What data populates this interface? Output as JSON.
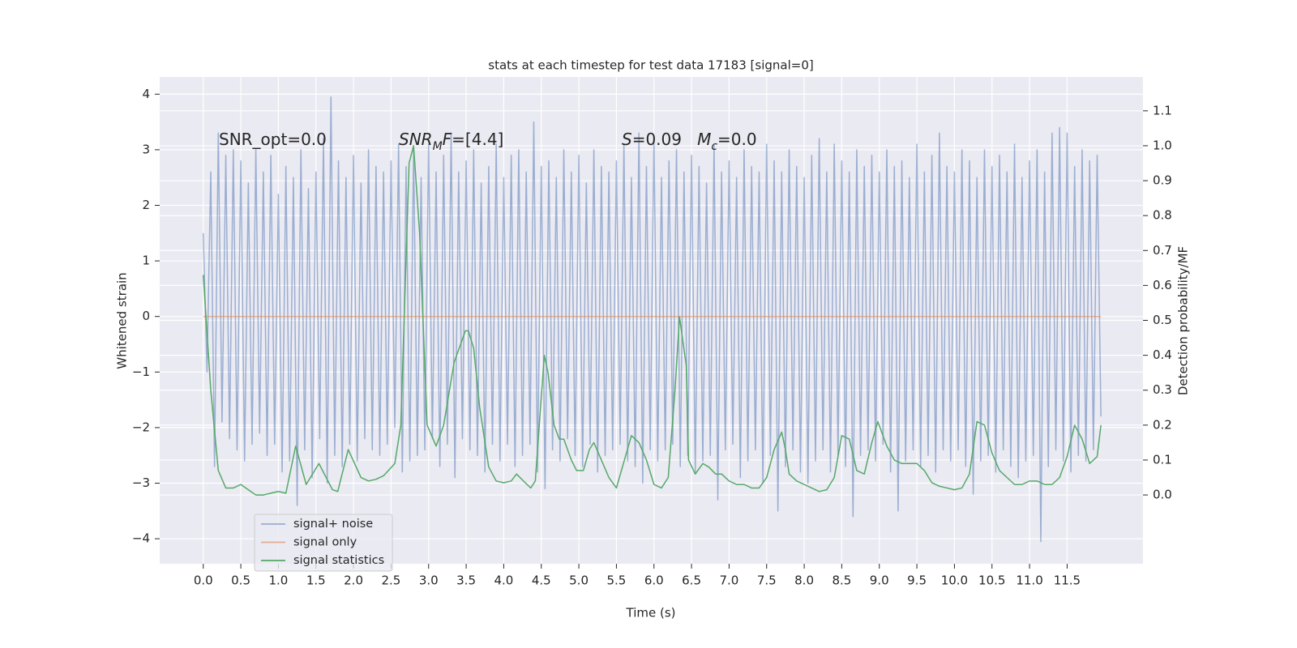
{
  "chart_data": {
    "type": "line",
    "title": "stats at each timestep for test data 17183 [signal=0]",
    "x_label": "Time (s)",
    "y_label": "Whitened strain",
    "y2_label": "Detection probability/MF",
    "xlim": [
      -0.58,
      12.51
    ],
    "ylim": [
      -4.45,
      4.31
    ],
    "y2lim": [
      -0.197,
      1.197
    ],
    "xticks": [
      {
        "value": 0,
        "label": "0.0"
      },
      0.5,
      {
        "value": 1,
        "label": "1.0"
      },
      1.5,
      {
        "value": 2,
        "label": "2.0"
      },
      2.5,
      {
        "value": 3,
        "label": "3.0"
      },
      3.5,
      {
        "value": 4,
        "label": "4.0"
      },
      4.5,
      {
        "value": 5,
        "label": "5.0"
      },
      5.5,
      {
        "value": 6,
        "label": "6.0"
      },
      6.5,
      {
        "value": 7,
        "label": "7.0"
      },
      7.5,
      {
        "value": 8,
        "label": "8.0"
      },
      8.5,
      {
        "value": 9,
        "label": "9.0"
      },
      9.5,
      {
        "value": 10,
        "label": "10.0"
      },
      10.5,
      {
        "value": 11,
        "label": "11.0"
      },
      11.5
    ],
    "yticks": [
      {
        "value": -4,
        "label": "−4"
      },
      {
        "value": -3,
        "label": "−3"
      },
      {
        "value": -2,
        "label": "−2"
      },
      {
        "value": -1,
        "label": "−1"
      },
      0,
      1,
      2,
      3,
      4
    ],
    "y2ticks": [
      {
        "value": 0,
        "label": "0.0"
      },
      0.1,
      0.2,
      0.3,
      0.4,
      0.5,
      0.6,
      0.7,
      0.8,
      0.9,
      {
        "value": 1,
        "label": "1.0"
      },
      1.1
    ],
    "grid": true,
    "legend": "lower left",
    "annotations": [
      [
        {
          "text": "SNR_opt=0.0"
        }
      ],
      [
        {
          "text": "SNR",
          "style": "italic"
        },
        {
          "text": "M",
          "style": "italic-sub"
        },
        {
          "text": "F",
          "style": "italic"
        },
        {
          "text": "=[4.4]"
        }
      ],
      [
        {
          "text": "S",
          "style": "italic"
        },
        {
          "text": "=0.09   "
        },
        {
          "text": "M",
          "style": "italic"
        },
        {
          "text": "c",
          "style": "italic-sub"
        },
        {
          "text": "=0.0"
        }
      ]
    ],
    "series": [
      {
        "name": "signal+ noise",
        "color": "#4c72b0",
        "opacity": 0.5,
        "x": [
          0,
          0.05,
          0.1,
          0.15,
          0.2,
          0.25,
          0.3,
          0.35,
          0.4,
          0.45,
          0.5,
          0.55,
          0.6,
          0.65,
          0.7,
          0.75,
          0.8,
          0.85,
          0.9,
          0.95,
          1,
          1.05,
          1.1,
          1.15,
          1.2,
          1.25,
          1.3,
          1.35,
          1.4,
          1.45,
          1.5,
          1.55,
          1.6,
          1.65,
          1.7,
          1.75,
          1.8,
          1.85,
          1.9,
          1.95,
          2,
          2.05,
          2.1,
          2.15,
          2.2,
          2.25,
          2.3,
          2.35,
          2.4,
          2.45,
          2.5,
          2.55,
          2.6,
          2.65,
          2.7,
          2.75,
          2.8,
          2.85,
          2.9,
          2.95,
          3,
          3.05,
          3.1,
          3.15,
          3.2,
          3.25,
          3.3,
          3.35,
          3.4,
          3.45,
          3.5,
          3.55,
          3.6,
          3.65,
          3.7,
          3.75,
          3.8,
          3.85,
          3.9,
          3.95,
          4,
          4.05,
          4.1,
          4.15,
          4.2,
          4.25,
          4.3,
          4.35,
          4.4,
          4.45,
          4.5,
          4.55,
          4.6,
          4.65,
          4.7,
          4.75,
          4.8,
          4.85,
          4.9,
          4.95,
          5,
          5.05,
          5.1,
          5.15,
          5.2,
          5.25,
          5.3,
          5.35,
          5.4,
          5.45,
          5.5,
          5.55,
          5.6,
          5.65,
          5.7,
          5.75,
          5.8,
          5.85,
          5.9,
          5.95,
          6,
          6.05,
          6.1,
          6.15,
          6.2,
          6.25,
          6.3,
          6.35,
          6.4,
          6.45,
          6.5,
          6.55,
          6.6,
          6.65,
          6.7,
          6.75,
          6.8,
          6.85,
          6.9,
          6.95,
          7,
          7.05,
          7.1,
          7.15,
          7.2,
          7.25,
          7.3,
          7.35,
          7.4,
          7.45,
          7.5,
          7.55,
          7.6,
          7.65,
          7.7,
          7.75,
          7.8,
          7.85,
          7.9,
          7.95,
          8,
          8.05,
          8.1,
          8.15,
          8.2,
          8.25,
          8.3,
          8.35,
          8.4,
          8.45,
          8.5,
          8.55,
          8.6,
          8.65,
          8.7,
          8.75,
          8.8,
          8.85,
          8.9,
          8.95,
          9,
          9.05,
          9.1,
          9.15,
          9.2,
          9.25,
          9.3,
          9.35,
          9.4,
          9.45,
          9.5,
          9.55,
          9.6,
          9.65,
          9.7,
          9.75,
          9.8,
          9.85,
          9.9,
          9.95,
          10,
          10.05,
          10.1,
          10.15,
          10.2,
          10.25,
          10.3,
          10.35,
          10.4,
          10.45,
          10.5,
          10.55,
          10.6,
          10.65,
          10.7,
          10.75,
          10.8,
          10.85,
          10.9,
          10.95,
          11,
          11.05,
          11.1,
          11.15,
          11.2,
          11.25,
          11.3,
          11.35,
          11.4,
          11.45,
          11.5,
          11.55,
          11.6,
          11.65,
          11.7,
          11.75,
          11.8,
          11.85,
          11.9,
          11.95
        ],
        "values": [
          1.5,
          -1.0,
          2.6,
          -2.7,
          3.3,
          -1.9,
          2.9,
          -2.2,
          3.0,
          -2.4,
          2.8,
          -2.6,
          2.4,
          -2.3,
          3.0,
          -2.1,
          2.6,
          -2.5,
          2.9,
          -2.3,
          2.2,
          -2.8,
          2.7,
          -2.6,
          2.5,
          -3.4,
          3.0,
          -2.4,
          2.3,
          -2.9,
          2.6,
          -2.2,
          3.2,
          -3.0,
          3.95,
          -2.5,
          2.8,
          -2.7,
          2.5,
          -2.3,
          2.9,
          -2.6,
          2.4,
          -2.2,
          3.0,
          -2.4,
          2.7,
          -2.5,
          2.6,
          -2.3,
          2.8,
          -2.0,
          3.1,
          -2.8,
          2.7,
          -2.6,
          3.0,
          -2.5,
          2.5,
          -2.4,
          3.1,
          -2.2,
          2.6,
          -2.7,
          2.9,
          -2.3,
          3.3,
          -2.9,
          2.6,
          -2.2,
          2.8,
          -2.4,
          3.0,
          -2.5,
          2.4,
          -2.8,
          2.7,
          -2.3,
          3.1,
          -2.6,
          2.5,
          -2.3,
          2.9,
          -2.7,
          3.0,
          -2.5,
          2.6,
          -2.3,
          3.5,
          -2.8,
          2.7,
          -3.1,
          2.8,
          -2.4,
          2.5,
          -2.6,
          3.0,
          -2.2,
          2.6,
          -2.5,
          2.9,
          -2.7,
          2.4,
          -2.3,
          3.0,
          -2.8,
          2.7,
          -2.5,
          2.6,
          -2.4,
          2.8,
          -2.3,
          3.1,
          -2.6,
          2.5,
          -2.7,
          3.3,
          -3.0,
          2.7,
          -2.4,
          3.2,
          -2.6,
          2.5,
          -2.4,
          2.8,
          -2.3,
          3.0,
          -2.7,
          2.6,
          -2.5,
          2.9,
          -2.8,
          2.7,
          -2.6,
          2.4,
          -2.5,
          3.1,
          -3.3,
          2.6,
          -2.4,
          2.8,
          -2.3,
          2.5,
          -2.9,
          3.0,
          -2.6,
          2.7,
          -2.4,
          2.6,
          -3.0,
          3.1,
          -2.5,
          2.8,
          -3.5,
          2.6,
          -2.7,
          3.0,
          -2.4,
          2.7,
          -2.8,
          2.5,
          -3.0,
          2.9,
          -2.6,
          3.2,
          -2.4,
          2.6,
          -2.8,
          3.1,
          -2.5,
          2.8,
          -2.7,
          2.6,
          -3.6,
          3.0,
          -2.5,
          2.7,
          -2.4,
          2.9,
          -2.6,
          2.6,
          -2.3,
          3.0,
          -2.8,
          2.7,
          -3.5,
          2.8,
          -2.6,
          2.5,
          -2.4,
          3.1,
          -2.7,
          2.6,
          -2.5,
          2.9,
          -2.8,
          3.3,
          -2.4,
          2.7,
          -2.6,
          2.6,
          -2.4,
          3.0,
          -2.7,
          2.8,
          -3.2,
          2.5,
          -2.6,
          3.0,
          -2.5,
          2.7,
          -2.8,
          2.9,
          -2.4,
          2.6,
          -2.7,
          3.1,
          -2.9,
          2.5,
          -2.6,
          2.8,
          -2.5,
          3.0,
          -4.05,
          2.6,
          -2.7,
          3.3,
          -2.4,
          3.4,
          -2.6,
          3.3,
          -2.8,
          2.7,
          -2.5,
          3.0,
          -2.6,
          2.8,
          -2.4,
          2.9,
          -1.8
        ]
      },
      {
        "name": "signal only",
        "color": "#dd8452",
        "opacity": 0.6,
        "x": [
          0,
          11.95
        ],
        "values": [
          0,
          0
        ]
      },
      {
        "name": "signal statistics",
        "color": "#55a868",
        "opacity": 1,
        "axis": "y2",
        "x": [
          0,
          0.1,
          0.2,
          0.3,
          0.4,
          0.5,
          0.6,
          0.7,
          0.8,
          0.9,
          1.0,
          1.1,
          1.23,
          1.37,
          1.54,
          1.72,
          1.79,
          1.93,
          2.1,
          2.2,
          2.3,
          2.4,
          2.55,
          2.63,
          2.74,
          2.8,
          2.88,
          2.98,
          3.1,
          3.2,
          3.34,
          3.49,
          3.53,
          3.6,
          3.68,
          3.8,
          3.9,
          4.0,
          4.1,
          4.17,
          4.31,
          4.36,
          4.42,
          4.54,
          4.59,
          4.67,
          4.74,
          4.8,
          4.9,
          4.97,
          5.06,
          5.14,
          5.2,
          5.3,
          5.4,
          5.5,
          5.58,
          5.7,
          5.8,
          5.9,
          6.0,
          6.1,
          6.19,
          6.28,
          6.34,
          6.43,
          6.46,
          6.55,
          6.65,
          6.73,
          6.82,
          6.9,
          7.0,
          7.1,
          7.2,
          7.3,
          7.4,
          7.5,
          7.6,
          7.7,
          7.75,
          7.8,
          7.9,
          8.0,
          8.1,
          8.2,
          8.3,
          8.4,
          8.5,
          8.6,
          8.7,
          8.8,
          8.9,
          8.98,
          9.1,
          9.2,
          9.3,
          9.4,
          9.5,
          9.6,
          9.7,
          9.8,
          9.9,
          10.0,
          10.1,
          10.2,
          10.3,
          10.4,
          10.5,
          10.6,
          10.7,
          10.8,
          10.9,
          11.0,
          11.1,
          11.2,
          11.3,
          11.4,
          11.5,
          11.6,
          11.7,
          11.8,
          11.9,
          11.95
        ],
        "values": [
          0.63,
          0.3,
          0.07,
          0.02,
          0.02,
          0.03,
          0.015,
          0.0,
          0.0,
          0.005,
          0.01,
          0.005,
          0.14,
          0.03,
          0.09,
          0.015,
          0.01,
          0.13,
          0.05,
          0.04,
          0.045,
          0.055,
          0.09,
          0.2,
          0.95,
          1.0,
          0.75,
          0.2,
          0.14,
          0.2,
          0.38,
          0.47,
          0.47,
          0.42,
          0.25,
          0.08,
          0.04,
          0.035,
          0.04,
          0.06,
          0.03,
          0.02,
          0.04,
          0.4,
          0.35,
          0.2,
          0.16,
          0.16,
          0.1,
          0.07,
          0.07,
          0.13,
          0.15,
          0.1,
          0.05,
          0.02,
          0.08,
          0.17,
          0.15,
          0.1,
          0.03,
          0.02,
          0.05,
          0.3,
          0.51,
          0.37,
          0.1,
          0.06,
          0.09,
          0.08,
          0.06,
          0.06,
          0.04,
          0.03,
          0.03,
          0.02,
          0.02,
          0.05,
          0.13,
          0.18,
          0.13,
          0.06,
          0.04,
          0.03,
          0.02,
          0.01,
          0.015,
          0.05,
          0.17,
          0.16,
          0.07,
          0.06,
          0.15,
          0.21,
          0.14,
          0.1,
          0.09,
          0.09,
          0.09,
          0.07,
          0.035,
          0.025,
          0.02,
          0.015,
          0.02,
          0.06,
          0.21,
          0.2,
          0.12,
          0.07,
          0.05,
          0.03,
          0.03,
          0.04,
          0.04,
          0.03,
          0.03,
          0.05,
          0.11,
          0.2,
          0.16,
          0.09,
          0.11,
          0.2
        ]
      }
    ]
  }
}
